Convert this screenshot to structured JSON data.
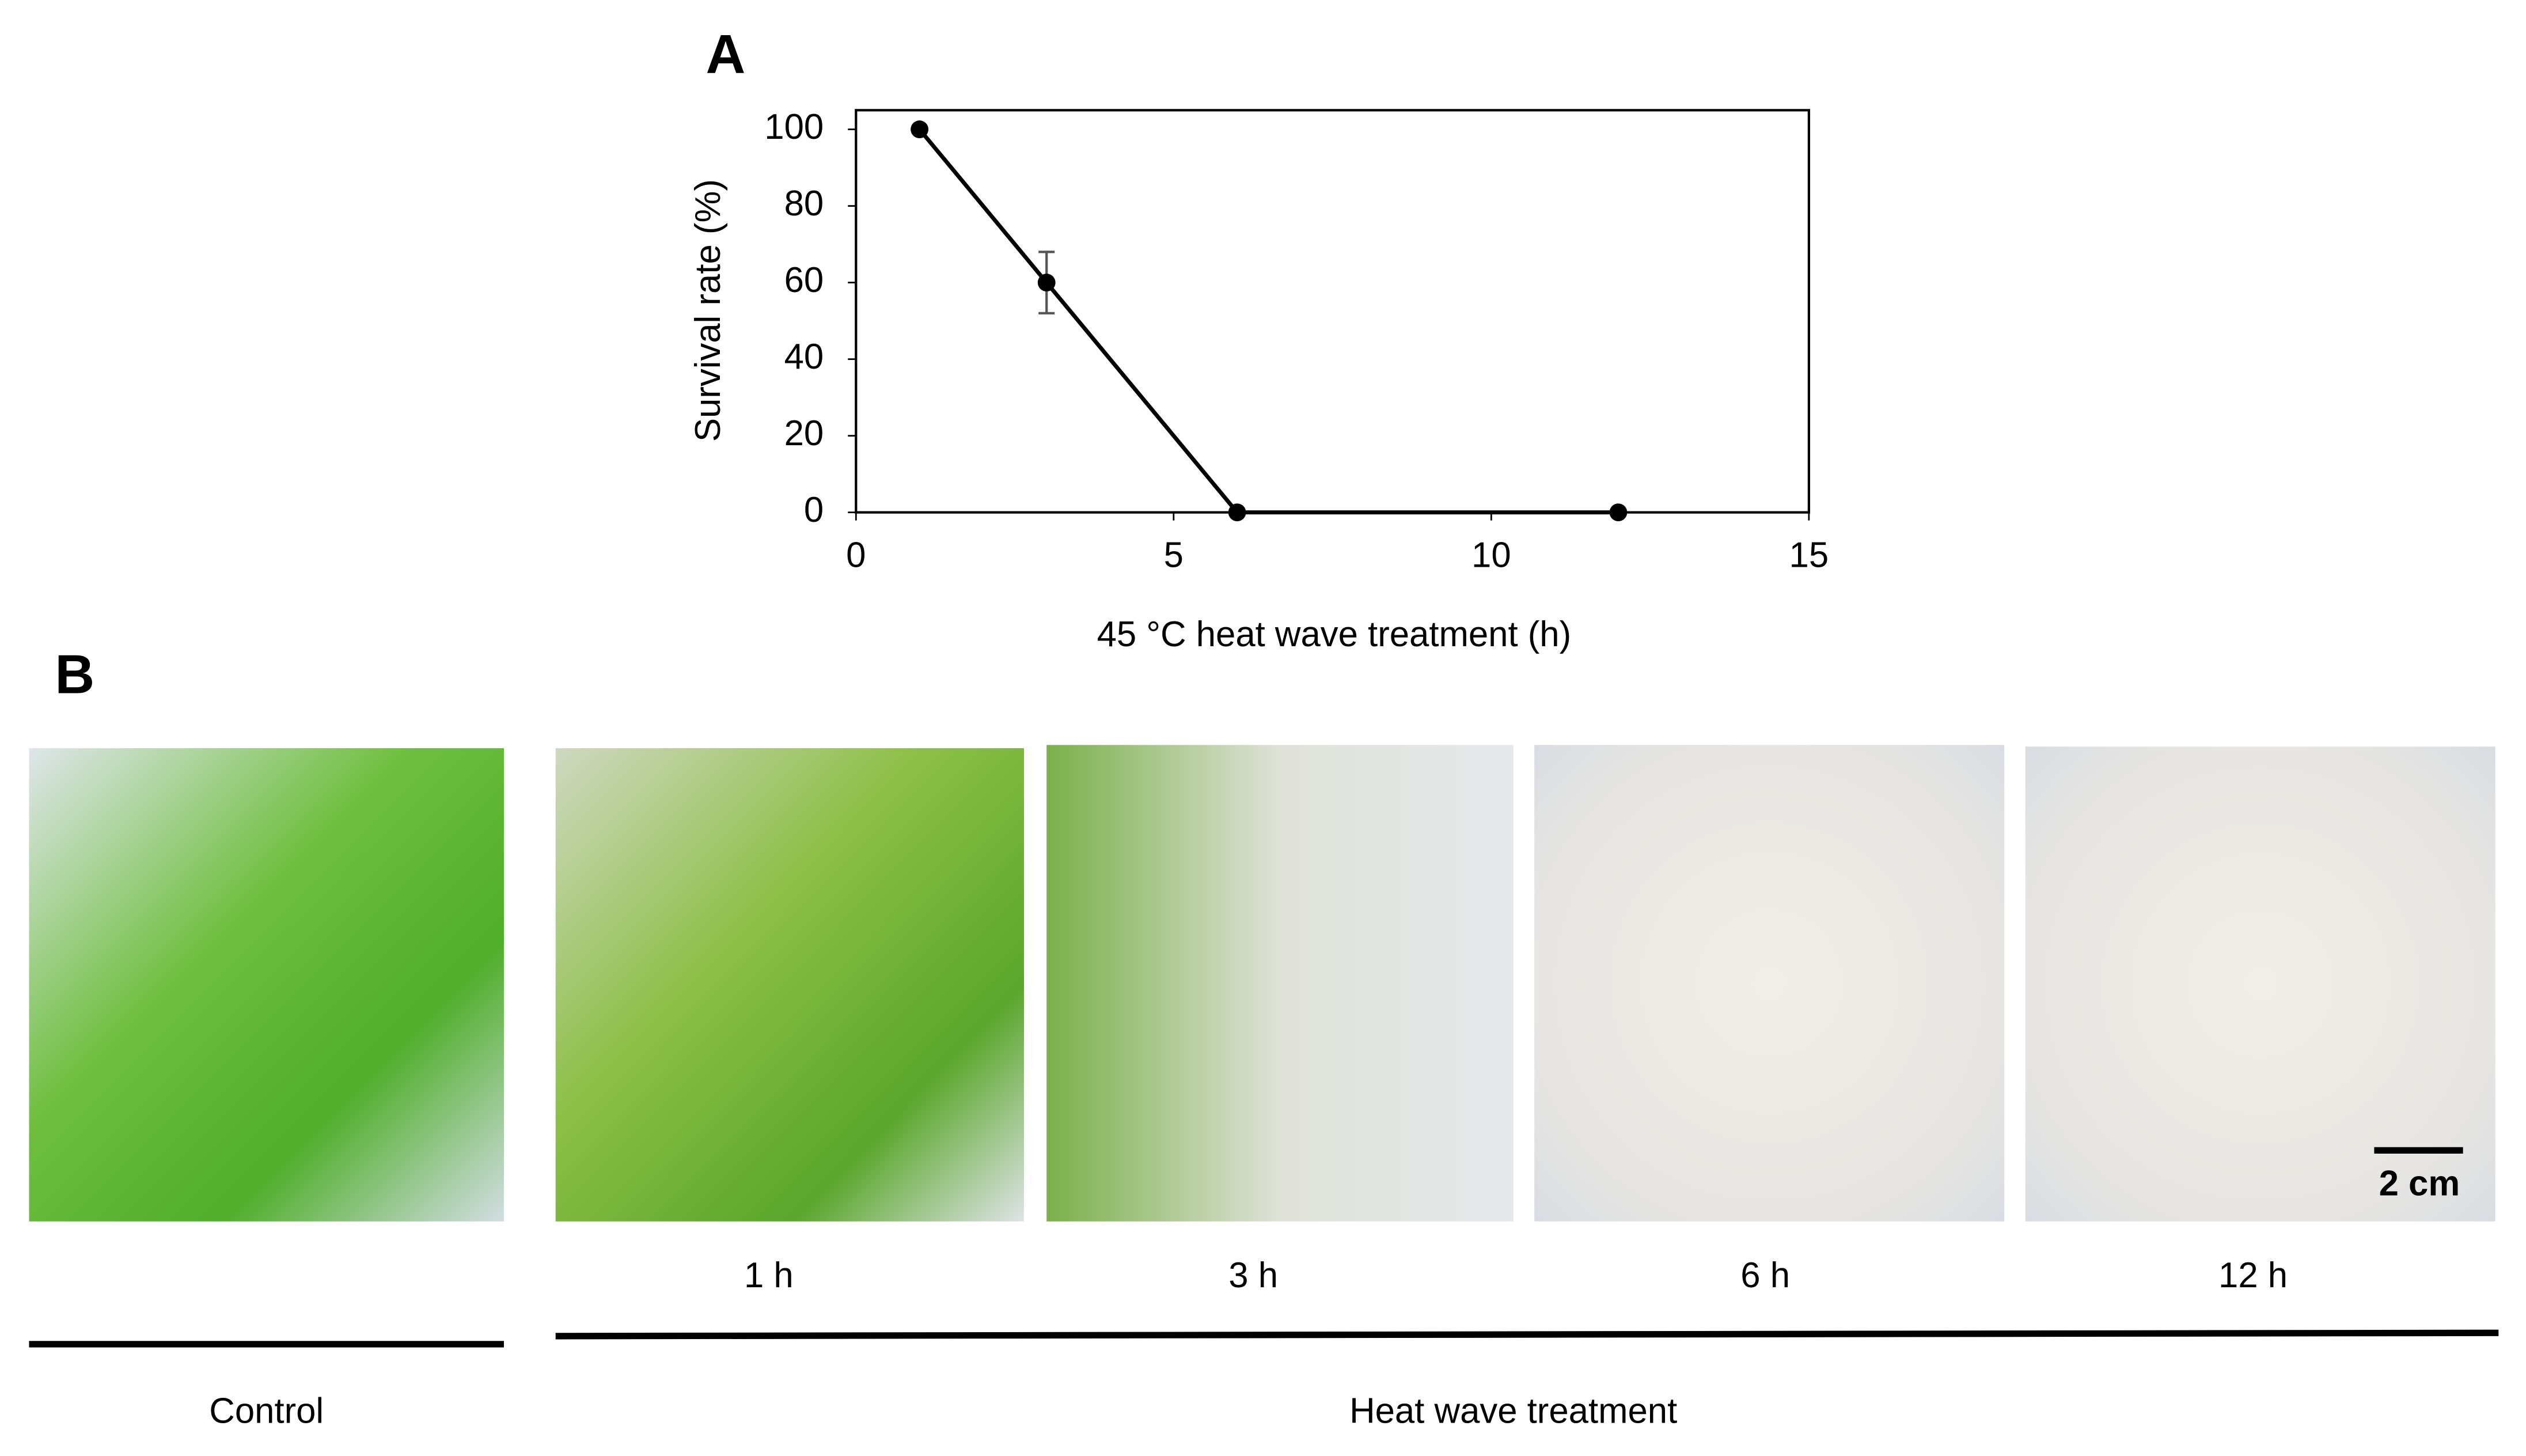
{
  "panel_labels": [
    "A",
    "B"
  ],
  "chart_data": {
    "type": "line",
    "x": [
      1,
      3,
      6,
      12
    ],
    "values": [
      100,
      60,
      0,
      0
    ],
    "errors": [
      null,
      8,
      null,
      null
    ],
    "color": "#000000",
    "xlim": [
      0,
      15
    ],
    "xticks": [
      0,
      5,
      10,
      15
    ],
    "ylim": [
      0,
      105
    ],
    "yticks": [
      0,
      20,
      40,
      60,
      80,
      100
    ],
    "x_label": "45 °C heat wave treatment (h)",
    "y_label": "Survival rate (%)",
    "grid": false
  },
  "photos": {
    "labels": [
      "1 h",
      "3 h",
      "6 h",
      "12 h"
    ],
    "scale_bar": "2 cm"
  },
  "groups": [
    "Control",
    "Heat wave treatment"
  ]
}
